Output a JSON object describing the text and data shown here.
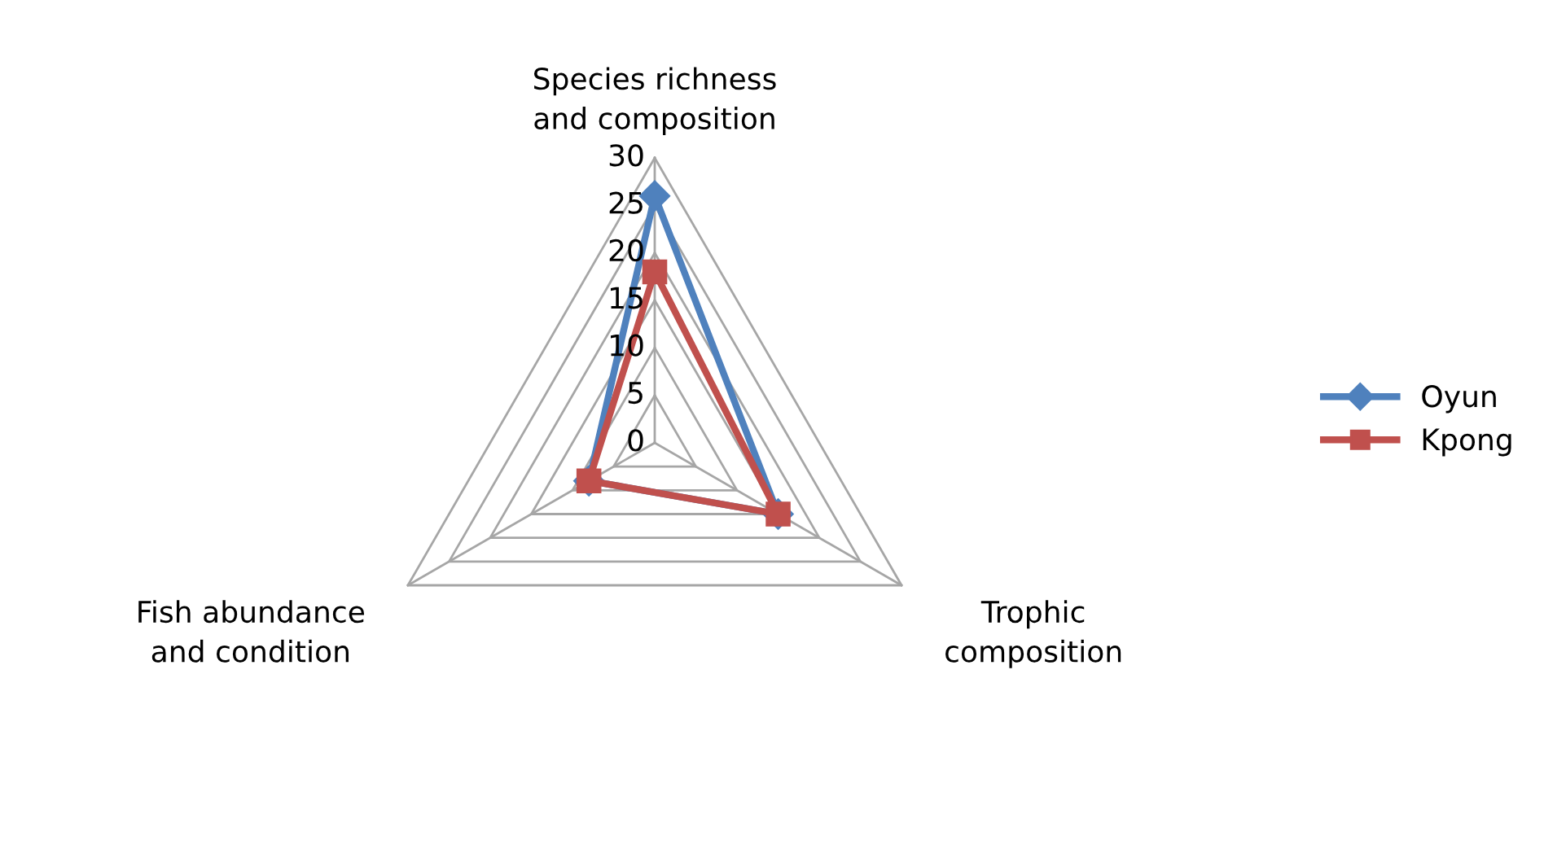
{
  "chart_data": {
    "type": "radar",
    "categories": [
      "Species richness\nand composition",
      "Trophic\ncomposition",
      "Fish abundance\nand condition"
    ],
    "series": [
      {
        "name": "Oyun",
        "color": "#4f81bd",
        "values": [
          26,
          15,
          8
        ],
        "marker": "diamond"
      },
      {
        "name": "Kpong",
        "color": "#c0504d",
        "values": [
          18,
          15,
          8
        ],
        "marker": "square"
      }
    ],
    "ylim": [
      0,
      30
    ],
    "yticks": [
      0,
      5,
      10,
      15,
      20,
      25,
      30
    ],
    "grid": true,
    "legend": "right",
    "line_style": "solid"
  }
}
